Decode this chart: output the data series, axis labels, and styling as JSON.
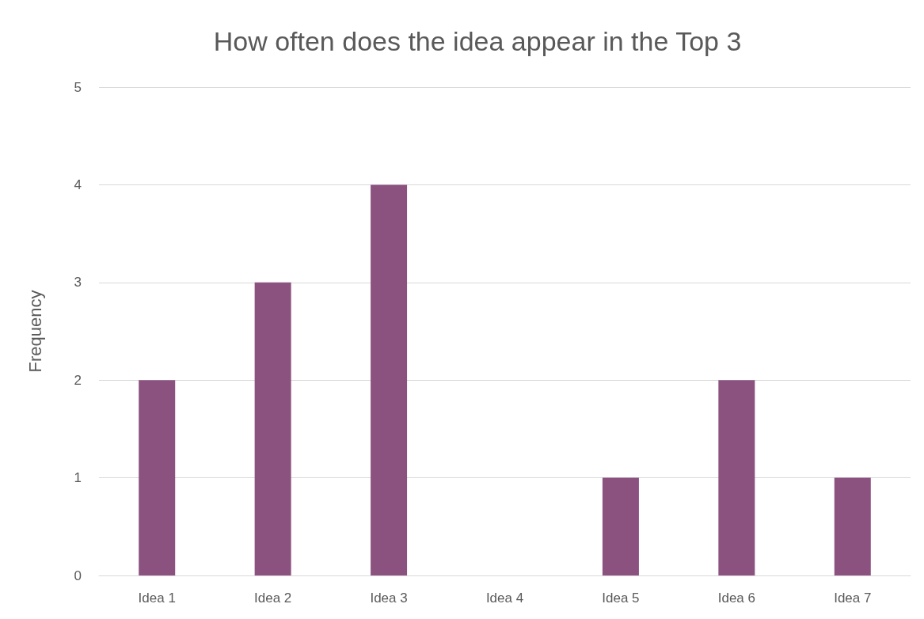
{
  "chart_data": {
    "type": "bar",
    "title": "How often does the idea appear in the Top 3",
    "ylabel": "Frequency",
    "categories": [
      "Idea 1",
      "Idea 2",
      "Idea 3",
      "Idea 4",
      "Idea 5",
      "Idea 6",
      "Idea 7"
    ],
    "values": [
      2,
      3,
      4,
      0,
      1,
      2,
      1
    ],
    "color": "#8b5280",
    "ylim": [
      0,
      5
    ],
    "yticks": [
      0,
      1,
      2,
      3,
      4,
      5
    ],
    "grid": "y"
  }
}
